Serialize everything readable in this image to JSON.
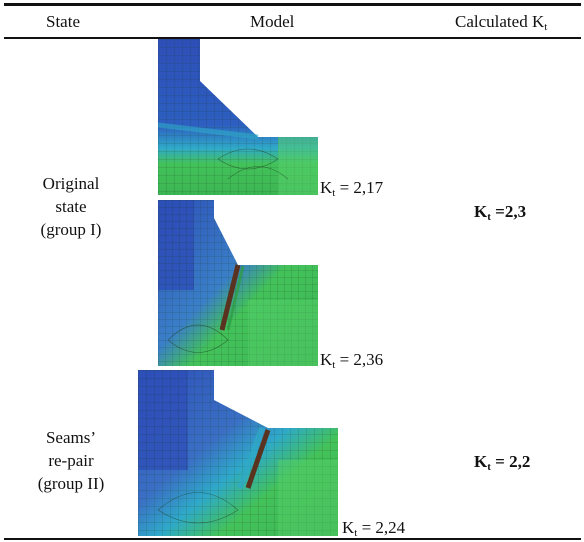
{
  "table": {
    "headers": {
      "state": "State",
      "model": "Model",
      "calc_prefix": "Calculated K",
      "calc_sub": "t"
    },
    "rows": [
      {
        "state_lines": [
          "Original",
          "state",
          "(group I)"
        ],
        "calculated": {
          "prefix": "K",
          "sub": "t",
          "value": " =2,3"
        },
        "models": [
          {
            "kt": {
              "prefix": "K",
              "sub": "t",
              "value": " = 2,17"
            }
          },
          {
            "kt": {
              "prefix": "K",
              "sub": "t",
              "value": " = 2,36"
            }
          }
        ]
      },
      {
        "state_lines": [
          "Seams’",
          "re-pair",
          "(group II)"
        ],
        "calculated": {
          "prefix": "K",
          "sub": "t",
          "value": " = 2,2"
        },
        "models": [
          {
            "kt": {
              "prefix": "K",
              "sub": "t",
              "value": " = 2,24"
            }
          }
        ]
      }
    ]
  },
  "colors": {
    "mesh_blue": "#2d4fb8",
    "mesh_cyan": "#2fa9c9",
    "mesh_green": "#43c25a",
    "mesh_dark_green": "#2f9e45",
    "weld_dark": "#5a3320",
    "mesh_line": "#1c3a1c"
  }
}
